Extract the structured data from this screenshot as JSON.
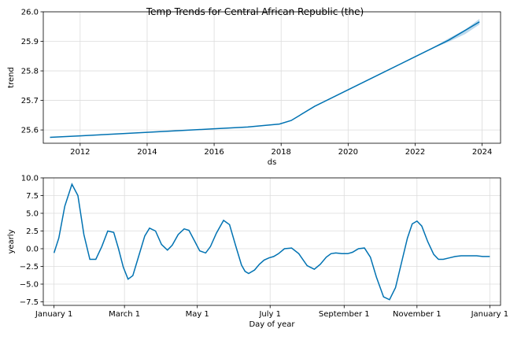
{
  "chart_data": [
    {
      "type": "line",
      "title": "Temp Trends for Central African Republic (the)",
      "xlabel": "ds",
      "ylabel": "trend",
      "x_type": "year",
      "xlim": [
        2010.9,
        2024.55
      ],
      "ylim": [
        25.555,
        26.0
      ],
      "xticks": [
        2012,
        2014,
        2016,
        2018,
        2020,
        2022,
        2024
      ],
      "xtick_labels": [
        "2012",
        "2014",
        "2016",
        "2018",
        "2020",
        "2022",
        "2024"
      ],
      "yticks": [
        25.6,
        25.7,
        25.8,
        25.9,
        26.0
      ],
      "ytick_labels": [
        "25.6",
        "25.7",
        "25.8",
        "25.9",
        "26.0"
      ],
      "grid": true,
      "line_color": "#0072B2",
      "band_color": "#9ec9e6",
      "series": [
        {
          "x": [
            2011.1,
            2012,
            2013,
            2014,
            2015,
            2016,
            2017,
            2017.95,
            2018.3,
            2019,
            2020,
            2021,
            2022,
            2023,
            2023.92
          ],
          "values": [
            25.575,
            25.58,
            25.586,
            25.592,
            25.598,
            25.604,
            25.61,
            25.62,
            25.632,
            25.68,
            25.736,
            25.792,
            25.848,
            25.904,
            25.966
          ]
        }
      ],
      "uncertainty": {
        "x": [
          2022.5,
          2023,
          2023.5,
          2023.92
        ],
        "lower": [
          25.875,
          25.898,
          25.925,
          25.957
        ],
        "upper": [
          25.877,
          25.91,
          25.94,
          25.976
        ]
      }
    },
    {
      "type": "line",
      "title": "",
      "xlabel": "Day of year",
      "ylabel": "yearly",
      "xlim": [
        -9,
        374
      ],
      "ylim": [
        -8.0,
        10.0
      ],
      "xticks": [
        0,
        59,
        120,
        181,
        243,
        304,
        365
      ],
      "xtick_labels": [
        "January 1",
        "March 1",
        "May 1",
        "July 1",
        "September 1",
        "November 1",
        "January 1"
      ],
      "yticks": [
        -7.5,
        -5.0,
        -2.5,
        0.0,
        2.5,
        5.0,
        7.5,
        10.0
      ],
      "ytick_labels": [
        "−7.5",
        "−5.0",
        "−2.5",
        "0.0",
        "2.5",
        "5.0",
        "7.5",
        "10.0"
      ],
      "grid": true,
      "line_color": "#0072B2",
      "series": [
        {
          "x": [
            0,
            4,
            9,
            15,
            20,
            25,
            30,
            35,
            40,
            45,
            50,
            54,
            58,
            62,
            66,
            71,
            76,
            80,
            85,
            90,
            95,
            99,
            104,
            109,
            113,
            118,
            122,
            127,
            131,
            136,
            142,
            147,
            152,
            157,
            160,
            163,
            168,
            172,
            176,
            180,
            184,
            188,
            193,
            199,
            205,
            212,
            218,
            223,
            228,
            232,
            236,
            241,
            246,
            250,
            255,
            260,
            265,
            270,
            276,
            281,
            286,
            291,
            296,
            300,
            304,
            308,
            313,
            318,
            322,
            326,
            331,
            336,
            341,
            346,
            350,
            354,
            359,
            362,
            365
          ],
          "values": [
            -0.6,
            1.5,
            6.0,
            9.1,
            7.5,
            2.0,
            -1.5,
            -1.5,
            0.3,
            2.5,
            2.3,
            0.0,
            -2.6,
            -4.3,
            -3.8,
            -1.0,
            1.8,
            2.9,
            2.5,
            0.6,
            -0.2,
            0.5,
            2.0,
            2.8,
            2.6,
            1.0,
            -0.3,
            -0.6,
            0.3,
            2.2,
            4.0,
            3.4,
            0.5,
            -2.3,
            -3.2,
            -3.5,
            -3.0,
            -2.2,
            -1.6,
            -1.3,
            -1.1,
            -0.7,
            0.0,
            0.1,
            -0.7,
            -2.4,
            -2.9,
            -2.2,
            -1.2,
            -0.7,
            -0.6,
            -0.7,
            -0.7,
            -0.5,
            0.0,
            0.1,
            -1.2,
            -4.0,
            -6.8,
            -7.2,
            -5.5,
            -2.0,
            1.5,
            3.5,
            3.9,
            3.2,
            1.0,
            -0.8,
            -1.5,
            -1.5,
            -1.3,
            -1.1,
            -1.0,
            -1.0,
            -1.0,
            -1.0,
            -1.1,
            -1.1,
            -1.1
          ]
        }
      ]
    }
  ]
}
